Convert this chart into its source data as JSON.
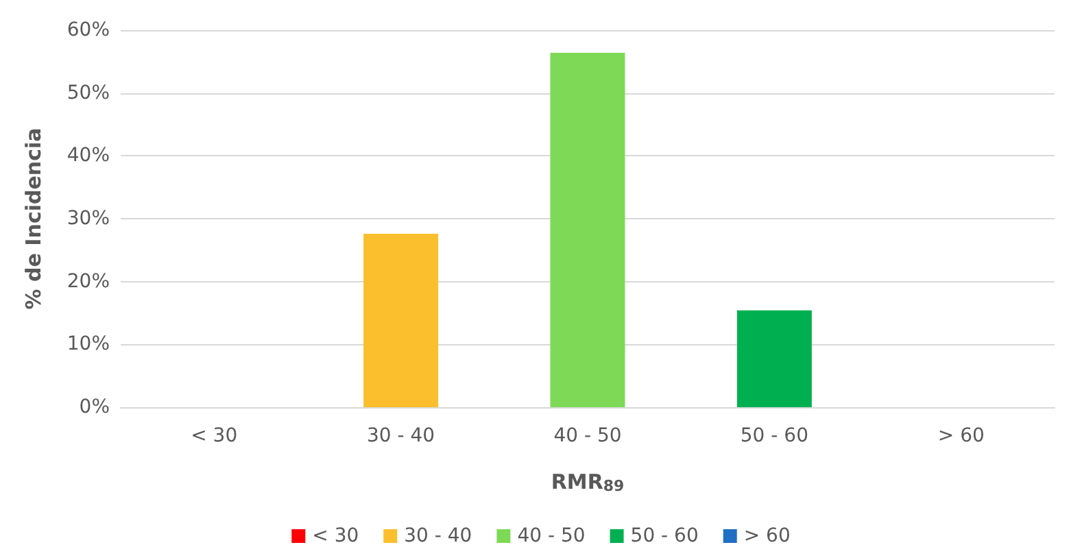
{
  "chart_data": {
    "type": "bar",
    "xlabel": "RMR$_{89}$",
    "ylabel": "% de Incidencia",
    "categories": [
      "< 30",
      "30 - 40",
      "40 - 50",
      "50 - 60",
      "> 60"
    ],
    "series": [
      {
        "name": "< 30",
        "color": "#ff0000",
        "values": [
          0,
          null,
          null,
          null,
          null
        ]
      },
      {
        "name": "30 - 40",
        "color": "#fbbf2d",
        "values": [
          null,
          27.6,
          null,
          null,
          null
        ]
      },
      {
        "name": "40 - 50",
        "color": "#7ed957",
        "values": [
          null,
          null,
          56.4,
          null,
          null
        ]
      },
      {
        "name": "50 - 60",
        "color": "#00b050",
        "values": [
          null,
          null,
          null,
          15.4,
          null
        ]
      },
      {
        "name": "> 60",
        "color": "#1f6fc5",
        "values": [
          null,
          null,
          null,
          null,
          0
        ]
      }
    ],
    "ylim": [
      0,
      60
    ],
    "yticks": [
      {
        "value": 0,
        "label": "0%"
      },
      {
        "value": 10,
        "label": "10%"
      },
      {
        "value": 20,
        "label": "20%"
      },
      {
        "value": 30,
        "label": "30%"
      },
      {
        "value": 40,
        "label": "40%"
      },
      {
        "value": 50,
        "label": "50%"
      },
      {
        "value": 60,
        "label": "60%"
      }
    ],
    "grid": "y",
    "legend": "bottom"
  }
}
